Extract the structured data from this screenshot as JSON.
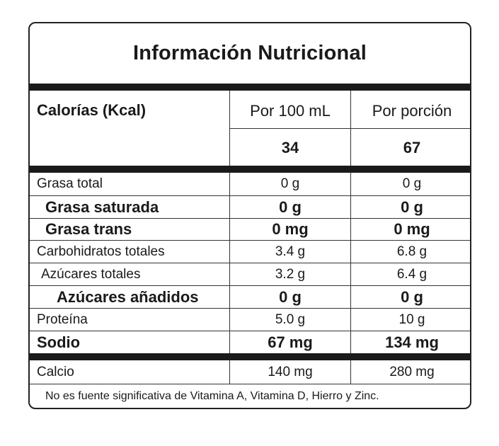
{
  "title": "Información Nutricional",
  "header": {
    "calories_label": "Calorías (Kcal)",
    "col1": "Por 100 mL",
    "col2": "Por porción",
    "cal_100": "34",
    "cal_portion": "67"
  },
  "rows": [
    {
      "label": "Grasa total",
      "per100": "0 g",
      "portion": "0 g"
    },
    {
      "label": "Grasa saturada",
      "per100": "0 g",
      "portion": "0 g"
    },
    {
      "label": "Grasa trans",
      "per100": "0 mg",
      "portion": "0 mg"
    },
    {
      "label": "Carbohidratos totales",
      "per100": "3.4 g",
      "portion": "6.8 g"
    },
    {
      "label": "Azúcares totales",
      "per100": "3.2 g",
      "portion": "6.4 g"
    },
    {
      "label": "Azúcares añadidos",
      "per100": "0 g",
      "portion": "0 g"
    },
    {
      "label": "Proteína",
      "per100": "5.0 g",
      "portion": "10 g"
    },
    {
      "label": "Sodio",
      "per100": "67 mg",
      "portion": "134 mg"
    },
    {
      "label": "Calcio",
      "per100": "140 mg",
      "portion": "280 mg"
    }
  ],
  "footnote": "No es fuente significativa de Vitamina A, Vitamina D, Hierro y Zinc."
}
